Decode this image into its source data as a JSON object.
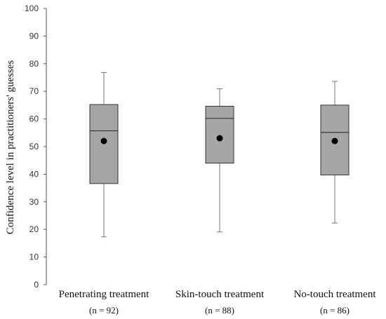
{
  "chart_data": {
    "type": "box",
    "ylabel": "Confidence level in practitioners' guesses",
    "xlabel": "",
    "ylim": [
      0,
      100
    ],
    "yticks": [
      0,
      10,
      20,
      30,
      40,
      50,
      60,
      70,
      80,
      90,
      100
    ],
    "grid": false,
    "colors": {
      "box_fill": "#a6a6a6",
      "box_stroke": "#333333",
      "whisker": "#777777",
      "mean_marker": "#000000"
    },
    "categories": [
      {
        "label": "Penetrating treatment",
        "n_label": "(n = 92)",
        "whisker_low": 17.3,
        "q1": 36.6,
        "median": 55.7,
        "q3": 65.2,
        "whisker_high": 76.8,
        "mean": 52.0
      },
      {
        "label": "Skin-touch treatment",
        "n_label": "(n = 88)",
        "whisker_low": 19.1,
        "q1": 44.0,
        "median": 60.2,
        "q3": 64.6,
        "whisker_high": 70.9,
        "mean": 53.0
      },
      {
        "label": "No-touch treatment",
        "n_label": "(n = 86)",
        "whisker_low": 22.3,
        "q1": 39.7,
        "median": 55.1,
        "q3": 65.0,
        "whisker_high": 73.6,
        "mean": 52.0
      }
    ]
  }
}
